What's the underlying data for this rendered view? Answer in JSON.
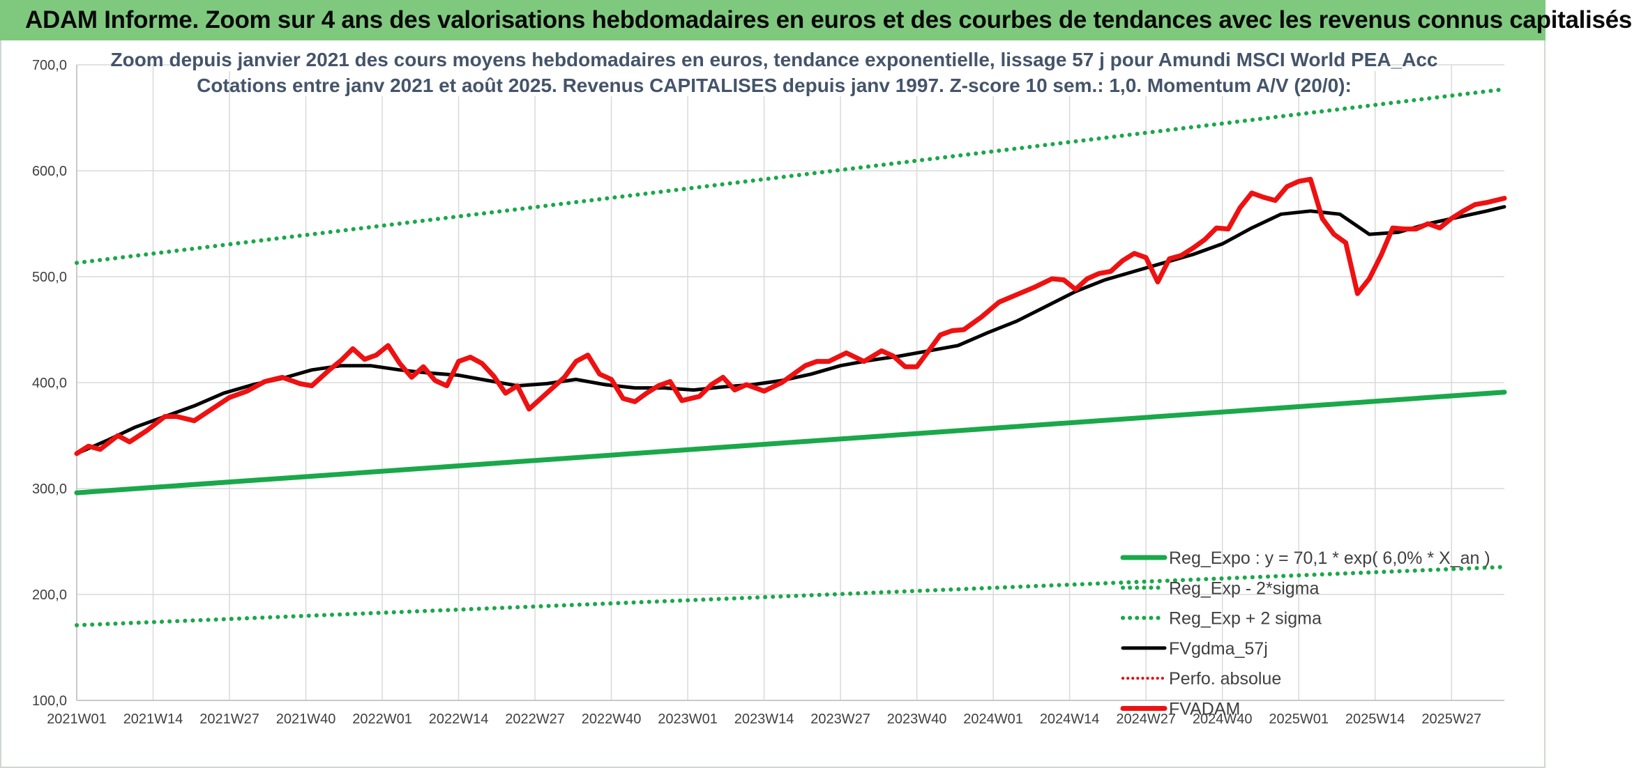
{
  "header": {
    "title": "ADAM Informe. Zoom sur 4 ans des valorisations hebdomadaires en euros et des courbes de tendances avec les revenus connus capitalisés"
  },
  "chart_data": {
    "type": "line",
    "title": "Zoom depuis janvier 2021 des cours moyens hebdomadaires en euros, tendance exponentielle, lissage 57 j pour Amundi MSCI World PEA_Acc",
    "subtitle": "Cotations entre janv 2021 et août 2025. Revenus CAPITALISES depuis janv 1997. Z-score 10 sem.: 1,0. Momentum A/V (20/0):",
    "xlabel": "",
    "ylabel": "",
    "ylim": [
      100,
      700
    ],
    "yticks": [
      100,
      200,
      300,
      400,
      500,
      600,
      700
    ],
    "ytick_labels": [
      "100,0",
      "200,0",
      "300,0",
      "400,0",
      "500,0",
      "600,0",
      "700,0"
    ],
    "xlim": [
      0,
      243
    ],
    "xticks": [
      0,
      13,
      26,
      39,
      52,
      65,
      78,
      91,
      104,
      117,
      130,
      143,
      156,
      169,
      182,
      195,
      208,
      221,
      234
    ],
    "xtick_labels": [
      "2021W01",
      "2021W14",
      "2021W27",
      "2021W40",
      "2022W01",
      "2022W14",
      "2022W27",
      "2022W40",
      "2023W01",
      "2023W14",
      "2023W27",
      "2023W40",
      "2024W01",
      "2024W14",
      "2024W27",
      "2024W40",
      "2025W01",
      "2025W14",
      "2025W27"
    ],
    "grid": true,
    "legend_position": "bottom-right",
    "series": [
      {
        "name": "Reg_Expo : y = 70,1 * exp( 6,0% *  X_an )",
        "color": "#1aa84a",
        "style": "solid",
        "x": [
          0,
          243
        ],
        "values": [
          296,
          391
        ]
      },
      {
        "name": "Reg_Exp - 2*sigma",
        "color": "#1aa84a",
        "style": "dotted",
        "x": [
          0,
          243
        ],
        "values": [
          171,
          226
        ]
      },
      {
        "name": "Reg_Exp + 2 sigma",
        "color": "#1aa84a",
        "style": "dotted",
        "x": [
          0,
          243
        ],
        "values": [
          513,
          677
        ]
      },
      {
        "name": "FVgdma_57j",
        "color": "#000000",
        "style": "solid",
        "x": [
          0,
          5,
          10,
          15,
          20,
          25,
          30,
          35,
          40,
          45,
          50,
          55,
          60,
          65,
          70,
          75,
          80,
          85,
          90,
          95,
          100,
          105,
          110,
          115,
          120,
          125,
          130,
          135,
          140,
          145,
          150,
          155,
          160,
          165,
          170,
          175,
          180,
          185,
          190,
          195,
          200,
          205,
          210,
          215,
          220,
          225,
          230,
          235,
          240,
          243
        ],
        "values": [
          333,
          345,
          358,
          368,
          378,
          390,
          398,
          404,
          412,
          416,
          416,
          412,
          409,
          407,
          402,
          397,
          399,
          403,
          398,
          395,
          395,
          393,
          396,
          398,
          402,
          408,
          416,
          421,
          425,
          430,
          435,
          447,
          458,
          472,
          486,
          497,
          505,
          513,
          521,
          531,
          546,
          559,
          562,
          559,
          540,
          542,
          550,
          556,
          562,
          566
        ]
      },
      {
        "name": "Perfo. absolue",
        "color": "#e00000",
        "style": "dotted",
        "x": [],
        "values": []
      },
      {
        "name": "FVADAM",
        "color": "#ee1111",
        "style": "solid",
        "x": [
          0,
          2,
          4,
          7,
          9,
          12,
          15,
          17,
          20,
          23,
          26,
          29,
          32,
          35,
          38,
          40,
          43,
          45,
          47,
          49,
          51,
          53,
          55,
          57,
          59,
          61,
          63,
          65,
          67,
          69,
          71,
          73,
          75,
          77,
          80,
          83,
          85,
          87,
          89,
          91,
          93,
          95,
          97,
          99,
          101,
          103,
          106,
          108,
          110,
          112,
          114,
          117,
          120,
          122,
          124,
          126,
          128,
          131,
          134,
          137,
          139,
          141,
          143,
          145,
          147,
          149,
          151,
          154,
          157,
          160,
          163,
          166,
          168,
          170,
          172,
          174,
          176,
          178,
          180,
          182,
          184,
          186,
          188,
          190,
          192,
          194,
          196,
          198,
          200,
          202,
          204,
          206,
          208,
          210,
          212,
          214,
          216,
          218,
          220,
          222,
          224,
          226,
          228,
          230,
          232,
          234,
          236,
          238,
          240,
          243
        ],
        "values": [
          333,
          340,
          337,
          350,
          344,
          355,
          368,
          368,
          364,
          375,
          386,
          392,
          401,
          405,
          399,
          397,
          412,
          421,
          432,
          422,
          426,
          435,
          418,
          405,
          415,
          402,
          397,
          420,
          424,
          418,
          406,
          390,
          397,
          375,
          390,
          405,
          420,
          426,
          408,
          403,
          385,
          382,
          390,
          397,
          401,
          383,
          387,
          398,
          405,
          393,
          398,
          392,
          400,
          408,
          416,
          420,
          420,
          428,
          420,
          430,
          425,
          415,
          415,
          430,
          445,
          449,
          450,
          462,
          476,
          483,
          490,
          498,
          497,
          488,
          498,
          503,
          505,
          515,
          522,
          518,
          495,
          517,
          520,
          527,
          535,
          546,
          545,
          565,
          579,
          575,
          572,
          585,
          590,
          592,
          555,
          540,
          532,
          484,
          498,
          520,
          546,
          545,
          545,
          550,
          546,
          555,
          562,
          568,
          570,
          574
        ]
      }
    ]
  }
}
